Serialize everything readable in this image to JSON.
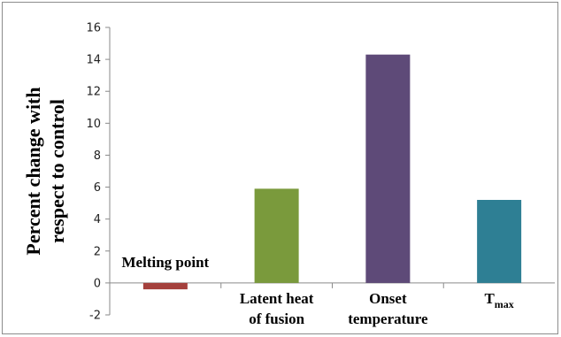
{
  "chart_data": {
    "type": "bar",
    "title": "",
    "xlabel": "",
    "ylabel_lines": [
      "Percent change with",
      "respect to control"
    ],
    "categories": [
      {
        "lines": [
          "Melting point"
        ],
        "sub": ""
      },
      {
        "lines": [
          "Latent heat",
          "of fusion"
        ],
        "sub": ""
      },
      {
        "lines": [
          "Onset",
          "temperature"
        ],
        "sub": ""
      },
      {
        "lines": [
          "T"
        ],
        "sub": "max"
      }
    ],
    "values": [
      -0.4,
      5.9,
      14.3,
      5.2
    ],
    "colors": [
      "#a4403c",
      "#7a9a3c",
      "#5e4a78",
      "#2e7f94"
    ],
    "ylim": [
      -2,
      16
    ],
    "yticks": [
      -2,
      0,
      2,
      4,
      6,
      8,
      10,
      12,
      14,
      16
    ],
    "grid": false,
    "legend": "none"
  }
}
